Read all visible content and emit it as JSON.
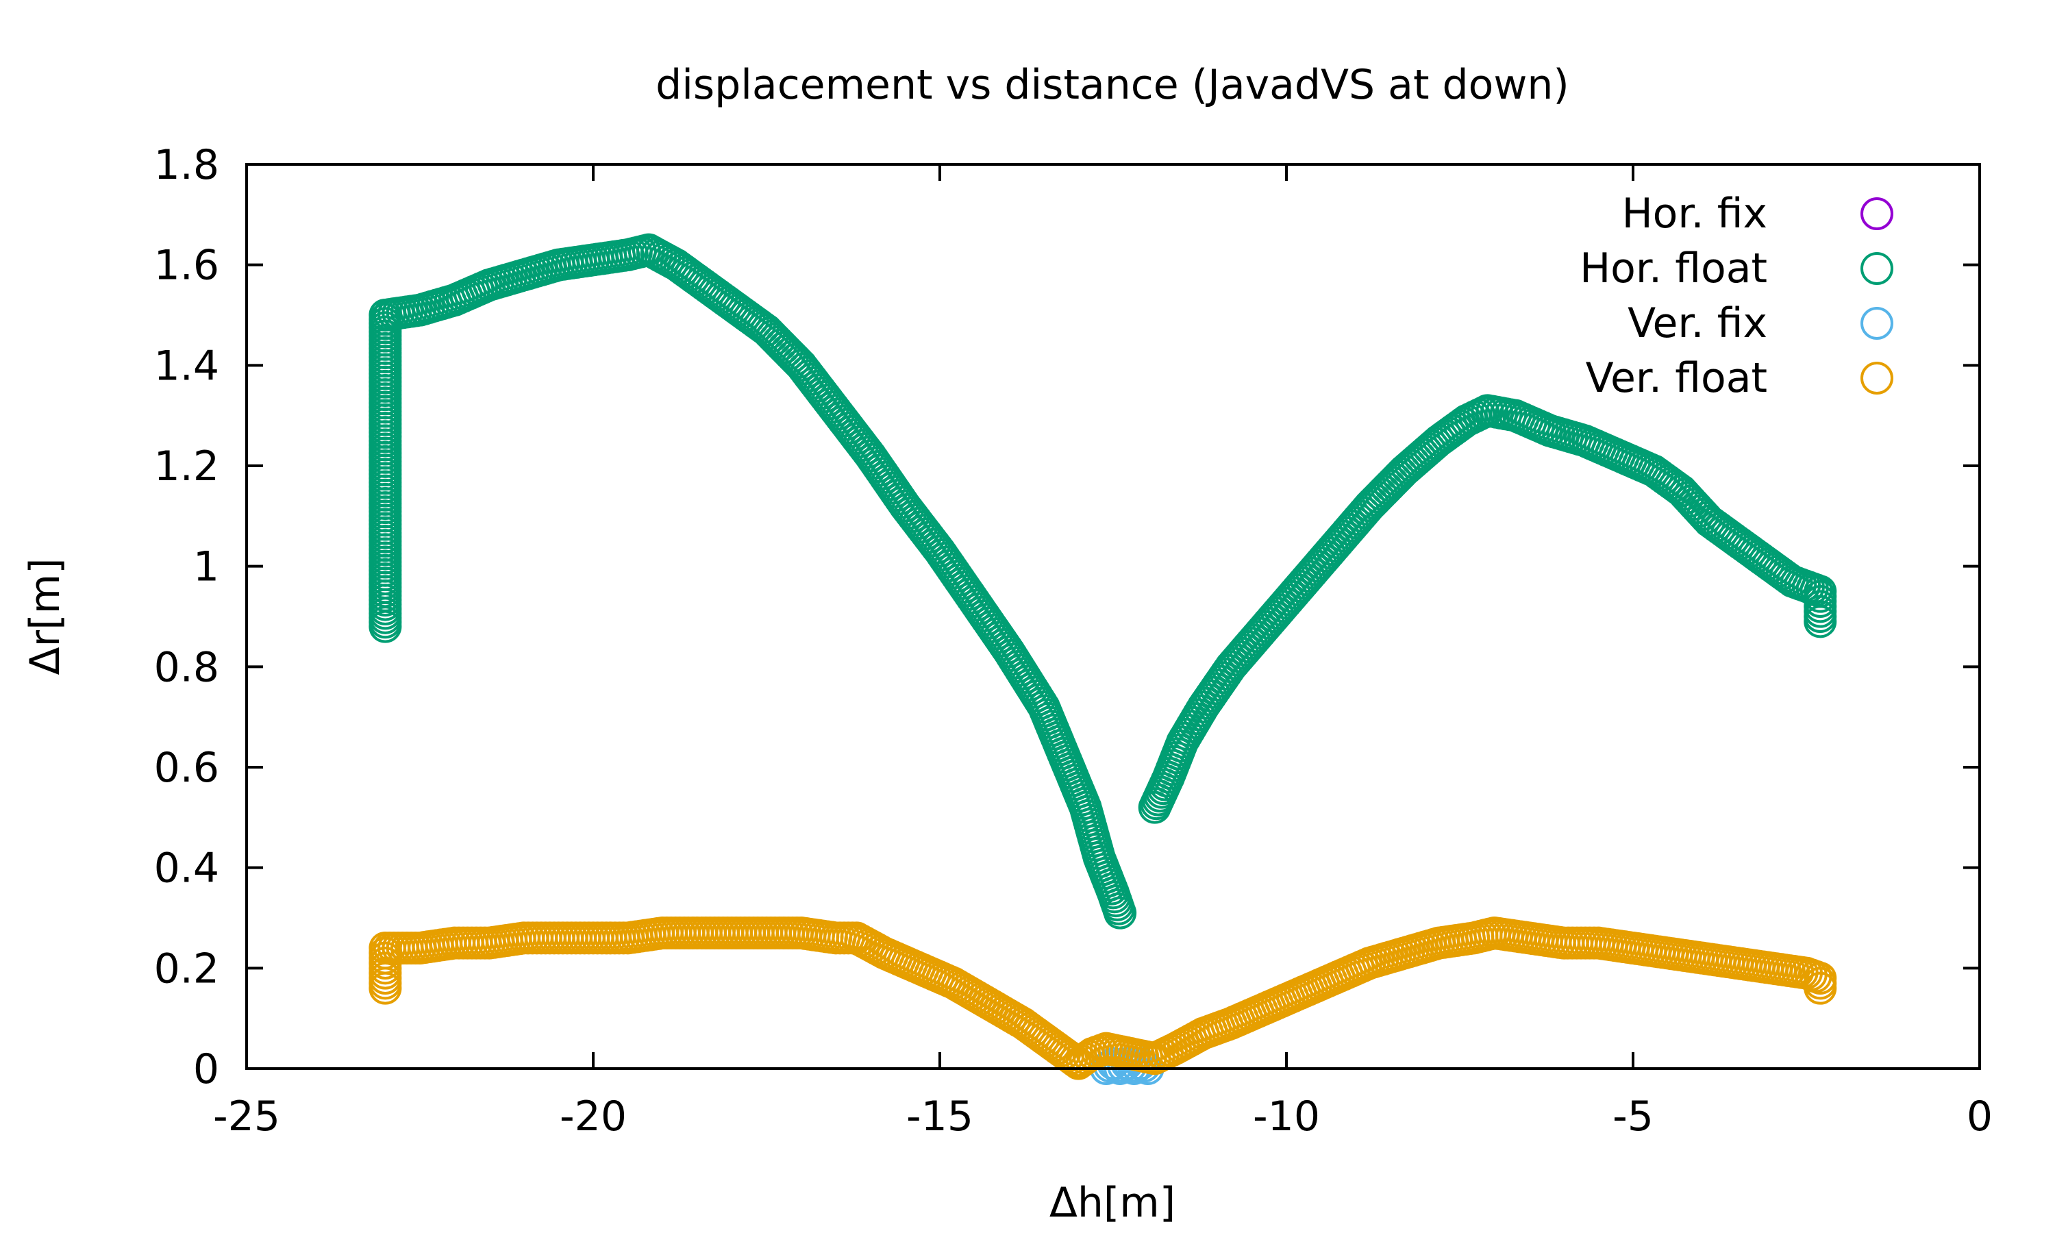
{
  "chart_data": {
    "type": "scatter",
    "title": "displacement vs distance (JavadVS at down)",
    "xlabel": "Δh[m]",
    "ylabel": "Δr[m]",
    "xlim": [
      -25,
      0
    ],
    "ylim": [
      0,
      1.8
    ],
    "x_ticks": [
      "-25",
      "-20",
      "-15",
      "-10",
      "-5",
      "0"
    ],
    "y_ticks": [
      "0",
      "0.2",
      "0.4",
      "0.6",
      "0.8",
      "1",
      "1.2",
      "1.4",
      "1.6",
      "1.8"
    ],
    "grid": false,
    "legend_position": "top-right",
    "marker": "open-circle",
    "series": [
      {
        "name": "Hor. fix",
        "color": "#9400d3",
        "points": []
      },
      {
        "name": "Hor. float",
        "color": "#009e73",
        "points": [
          [
            -23.0,
            0.88
          ],
          [
            -23.0,
            0.95
          ],
          [
            -23.0,
            1.05
          ],
          [
            -23.0,
            1.15
          ],
          [
            -23.0,
            1.25
          ],
          [
            -23.0,
            1.35
          ],
          [
            -23.0,
            1.45
          ],
          [
            -23.0,
            1.5
          ],
          [
            -22.5,
            1.51
          ],
          [
            -22.0,
            1.53
          ],
          [
            -21.5,
            1.56
          ],
          [
            -21.0,
            1.58
          ],
          [
            -20.5,
            1.6
          ],
          [
            -20.0,
            1.61
          ],
          [
            -19.5,
            1.62
          ],
          [
            -19.2,
            1.63
          ],
          [
            -18.8,
            1.6
          ],
          [
            -18.5,
            1.57
          ],
          [
            -18.0,
            1.52
          ],
          [
            -17.5,
            1.47
          ],
          [
            -17.0,
            1.4
          ],
          [
            -16.5,
            1.31
          ],
          [
            -16.0,
            1.22
          ],
          [
            -15.5,
            1.12
          ],
          [
            -15.0,
            1.03
          ],
          [
            -14.5,
            0.93
          ],
          [
            -14.0,
            0.83
          ],
          [
            -13.5,
            0.72
          ],
          [
            -13.2,
            0.62
          ],
          [
            -12.9,
            0.52
          ],
          [
            -12.7,
            0.42
          ],
          [
            -12.5,
            0.35
          ],
          [
            -12.4,
            0.31
          ],
          [
            -11.9,
            0.52
          ],
          [
            -11.7,
            0.58
          ],
          [
            -11.5,
            0.65
          ],
          [
            -11.2,
            0.72
          ],
          [
            -10.8,
            0.8
          ],
          [
            -10.3,
            0.88
          ],
          [
            -9.8,
            0.96
          ],
          [
            -9.3,
            1.04
          ],
          [
            -8.8,
            1.12
          ],
          [
            -8.3,
            1.19
          ],
          [
            -7.8,
            1.25
          ],
          [
            -7.4,
            1.29
          ],
          [
            -7.1,
            1.31
          ],
          [
            -6.7,
            1.3
          ],
          [
            -6.2,
            1.27
          ],
          [
            -5.7,
            1.25
          ],
          [
            -5.2,
            1.22
          ],
          [
            -4.7,
            1.19
          ],
          [
            -4.3,
            1.15
          ],
          [
            -3.9,
            1.09
          ],
          [
            -3.5,
            1.05
          ],
          [
            -3.1,
            1.01
          ],
          [
            -2.7,
            0.97
          ],
          [
            -2.3,
            0.95
          ],
          [
            -2.3,
            0.92
          ],
          [
            -2.3,
            0.89
          ]
        ]
      },
      {
        "name": "Ver. fix",
        "color": "#56b4e9",
        "points": [
          [
            -12.6,
            0.0
          ],
          [
            -12.5,
            0.01
          ],
          [
            -12.4,
            0.0
          ],
          [
            -12.3,
            0.01
          ],
          [
            -12.2,
            0.0
          ],
          [
            -12.1,
            0.01
          ],
          [
            -12.0,
            0.0
          ]
        ]
      },
      {
        "name": "Ver. float",
        "color": "#e69f00",
        "points": [
          [
            -23.0,
            0.16
          ],
          [
            -23.0,
            0.19
          ],
          [
            -23.0,
            0.22
          ],
          [
            -23.0,
            0.24
          ],
          [
            -22.5,
            0.24
          ],
          [
            -22.0,
            0.25
          ],
          [
            -21.5,
            0.25
          ],
          [
            -21.0,
            0.26
          ],
          [
            -20.5,
            0.26
          ],
          [
            -20.0,
            0.26
          ],
          [
            -19.5,
            0.26
          ],
          [
            -19.0,
            0.27
          ],
          [
            -18.5,
            0.27
          ],
          [
            -18.0,
            0.27
          ],
          [
            -17.5,
            0.27
          ],
          [
            -17.0,
            0.27
          ],
          [
            -16.5,
            0.26
          ],
          [
            -16.2,
            0.26
          ],
          [
            -15.8,
            0.23
          ],
          [
            -15.3,
            0.2
          ],
          [
            -14.8,
            0.17
          ],
          [
            -14.3,
            0.13
          ],
          [
            -13.8,
            0.09
          ],
          [
            -13.4,
            0.05
          ],
          [
            -13.0,
            0.01
          ],
          [
            -12.8,
            0.03
          ],
          [
            -12.6,
            0.04
          ],
          [
            -11.9,
            0.02
          ],
          [
            -11.6,
            0.04
          ],
          [
            -11.2,
            0.07
          ],
          [
            -10.8,
            0.09
          ],
          [
            -10.3,
            0.12
          ],
          [
            -9.8,
            0.15
          ],
          [
            -9.3,
            0.18
          ],
          [
            -8.8,
            0.21
          ],
          [
            -8.3,
            0.23
          ],
          [
            -7.8,
            0.25
          ],
          [
            -7.3,
            0.26
          ],
          [
            -7.0,
            0.27
          ],
          [
            -6.5,
            0.26
          ],
          [
            -6.0,
            0.25
          ],
          [
            -5.5,
            0.25
          ],
          [
            -5.0,
            0.24
          ],
          [
            -4.5,
            0.23
          ],
          [
            -4.0,
            0.22
          ],
          [
            -3.5,
            0.21
          ],
          [
            -3.0,
            0.2
          ],
          [
            -2.5,
            0.19
          ],
          [
            -2.3,
            0.18
          ],
          [
            -2.3,
            0.16
          ]
        ]
      }
    ]
  }
}
